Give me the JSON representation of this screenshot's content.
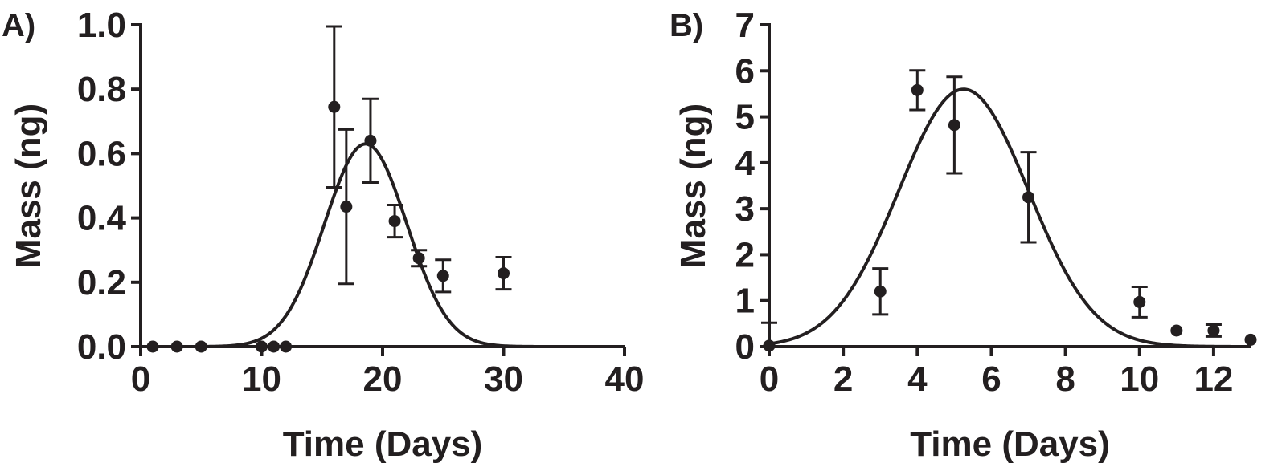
{
  "chart_data": [
    {
      "type": "scatter",
      "panel_label": "A)",
      "xlabel": "Time (Days)",
      "ylabel": "Mass (ng)",
      "xlim": [
        0,
        40
      ],
      "ylim": [
        0,
        1.0
      ],
      "x_ticks": [
        "0",
        "10",
        "20",
        "30",
        "40"
      ],
      "y_ticks": [
        "0.0",
        "0.2",
        "0.4",
        "0.6",
        "0.8",
        "1.0"
      ],
      "grid": false,
      "points": [
        {
          "x": 1,
          "y": 0.0,
          "err": 0
        },
        {
          "x": 3,
          "y": 0.0,
          "err": 0
        },
        {
          "x": 5,
          "y": 0.0,
          "err": 0
        },
        {
          "x": 10,
          "y": 0.0,
          "err": 0
        },
        {
          "x": 11,
          "y": 0.0,
          "err": 0
        },
        {
          "x": 12,
          "y": 0.0,
          "err": 0
        },
        {
          "x": 16,
          "y": 0.745,
          "err": 0.25
        },
        {
          "x": 17,
          "y": 0.435,
          "err": 0.24
        },
        {
          "x": 19,
          "y": 0.64,
          "err": 0.13
        },
        {
          "x": 21,
          "y": 0.39,
          "err": 0.05
        },
        {
          "x": 23,
          "y": 0.275,
          "err": 0.025
        },
        {
          "x": 25,
          "y": 0.22,
          "err": 0.05
        },
        {
          "x": 30,
          "y": 0.228,
          "err": 0.05
        }
      ],
      "fit": {
        "model": "gaussian",
        "peak_x": 18.6,
        "peak_y": 0.63,
        "sigma": 3.4
      }
    },
    {
      "type": "scatter",
      "panel_label": "B)",
      "xlabel": "Time (Days)",
      "ylabel": "Mass (ng)",
      "xlim": [
        0,
        13
      ],
      "ylim": [
        0,
        7
      ],
      "x_ticks": [
        "0",
        "2",
        "4",
        "6",
        "8",
        "10",
        "12"
      ],
      "y_ticks": [
        "0",
        "1",
        "2",
        "3",
        "4",
        "5",
        "6",
        "7"
      ],
      "grid": false,
      "points": [
        {
          "x": 0,
          "y": 0.02,
          "err": 0.5
        },
        {
          "x": 3,
          "y": 1.2,
          "err": 0.5
        },
        {
          "x": 4,
          "y": 5.58,
          "err": 0.43
        },
        {
          "x": 5,
          "y": 4.82,
          "err": 1.05
        },
        {
          "x": 7,
          "y": 3.25,
          "err": 0.98
        },
        {
          "x": 10,
          "y": 0.97,
          "err": 0.33
        },
        {
          "x": 11,
          "y": 0.35,
          "err": 0
        },
        {
          "x": 12,
          "y": 0.35,
          "err": 0.13
        },
        {
          "x": 13,
          "y": 0.15,
          "err": 0
        }
      ],
      "fit": {
        "model": "gaussian",
        "peak_x": 5.25,
        "peak_y": 5.6,
        "sigma": 1.75
      }
    }
  ]
}
